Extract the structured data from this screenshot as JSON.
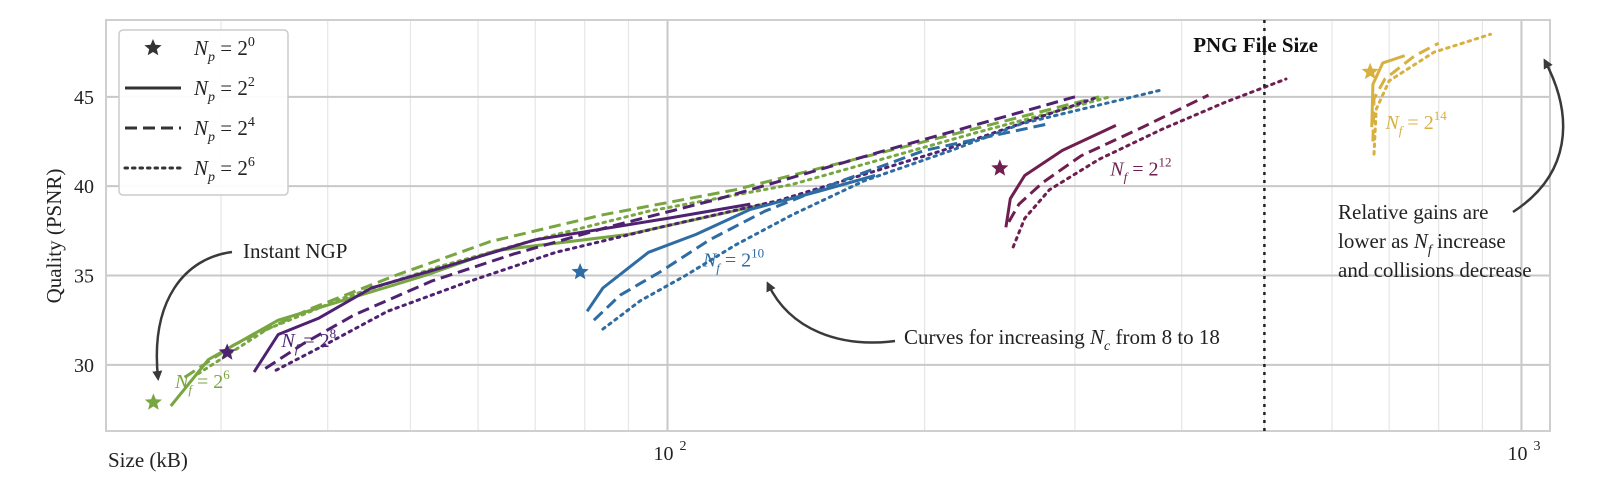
{
  "chart_data": {
    "type": "line",
    "x_scale": "log",
    "xlim": [
      22,
      1080
    ],
    "ylim": [
      26.3,
      49.3
    ],
    "xlabel": "Size (kB)",
    "ylabel": "Quality (PSNR)",
    "x_ticks": [
      {
        "value": 100,
        "base": "10",
        "exp": "2"
      },
      {
        "value": 1000,
        "base": "10",
        "exp": "3"
      }
    ],
    "y_ticks": [
      30,
      35,
      40,
      45
    ],
    "grid": true,
    "legend": {
      "position": "top-left",
      "entries": [
        {
          "style": "star",
          "text": "N",
          "sub": "p",
          "eq": " = 2",
          "exp": "0"
        },
        {
          "style": "solid",
          "text": "N",
          "sub": "p",
          "eq": " = 2",
          "exp": "2"
        },
        {
          "style": "dashed",
          "text": "N",
          "sub": "p",
          "eq": " = 2",
          "exp": "4"
        },
        {
          "style": "dotted",
          "text": "N",
          "sub": "p",
          "eq": " = 2",
          "exp": "6"
        }
      ]
    },
    "png_file_size": {
      "x": 500,
      "label": "PNG File Size"
    },
    "annotations": {
      "instant_ngp": "Instant NGP",
      "curves": {
        "pre": "Curves for increasing ",
        "sym": "N",
        "sub": "c",
        "post": " from 8 to 18"
      },
      "gains": {
        "line1": "Relative gains are",
        "line2_pre": "lower as ",
        "line2_sym": "N",
        "line2_sub": "f",
        "line2_post": " increase",
        "line3": "and collisions decrease"
      }
    },
    "series_groups": [
      {
        "name": "Nf = 2^6",
        "color": "#78a640",
        "label": {
          "sym": "N",
          "sub": "f",
          "eq": " = 2",
          "exp": "6",
          "at": [
            26.5,
            28.7
          ]
        },
        "star": [
          25.0,
          27.9
        ],
        "curves": [
          {
            "dash": "solid",
            "points": [
              [
                26.2,
                27.7
              ],
              [
                29,
                30.3
              ],
              [
                35,
                32.5
              ],
              [
                41,
                33.5
              ],
              [
                52,
                35.0
              ],
              [
                63,
                36.4
              ],
              [
                90,
                37.3
              ],
              [
                130,
                39.0
              ]
            ]
          },
          {
            "dash": "dashed",
            "points": [
              [
                27.2,
                29.3
              ],
              [
                31,
                31.1
              ],
              [
                38,
                33.1
              ],
              [
                48,
                35.0
              ],
              [
                62,
                36.9
              ],
              [
                84,
                38.4
              ],
              [
                120,
                39.8
              ],
              [
                220,
                43.0
              ],
              [
                320,
                45.0
              ]
            ]
          },
          {
            "dash": "dotted",
            "points": [
              [
                28.2,
                29.5
              ],
              [
                34,
                32.0
              ],
              [
                42,
                33.8
              ],
              [
                54,
                35.5
              ],
              [
                70,
                37.0
              ],
              [
                95,
                38.6
              ],
              [
                140,
                40.1
              ],
              [
                230,
                43.0
              ],
              [
                330,
                45.0
              ]
            ]
          }
        ]
      },
      {
        "name": "Nf = 2^8",
        "color": "#4e2270",
        "label": {
          "sym": "N",
          "sub": "f",
          "eq": " = 2",
          "exp": "8",
          "at": [
            35.3,
            31.0
          ]
        },
        "star": [
          30.5,
          30.7
        ],
        "curves": [
          {
            "dash": "solid",
            "points": [
              [
                32.8,
                29.6
              ],
              [
                35.0,
                31.7
              ],
              [
                39,
                32.6
              ],
              [
                45,
                34.3
              ],
              [
                55,
                35.5
              ],
              [
                70,
                37.0
              ],
              [
                100,
                38.2
              ],
              [
                125,
                39.0
              ]
            ]
          },
          {
            "dash": "dashed",
            "points": [
              [
                33.8,
                29.8
              ],
              [
                37.5,
                31.2
              ],
              [
                43,
                32.8
              ],
              [
                53,
                34.7
              ],
              [
                66,
                36.2
              ],
              [
                85,
                37.7
              ],
              [
                115,
                39.3
              ],
              [
                180,
                42.0
              ],
              [
                300,
                45.0
              ]
            ]
          },
          {
            "dash": "dotted",
            "points": [
              [
                34.8,
                29.7
              ],
              [
                40,
                31.2
              ],
              [
                47,
                33.0
              ],
              [
                58,
                34.6
              ],
              [
                74,
                36.3
              ],
              [
                98,
                37.7
              ],
              [
                135,
                39.2
              ],
              [
                210,
                42.0
              ],
              [
                320,
                45.0
              ]
            ]
          }
        ]
      },
      {
        "name": "Nf = 2^10",
        "color": "#2e6ca4",
        "label": {
          "sym": "N",
          "sub": "f",
          "eq": " = 2",
          "exp": "10",
          "at": [
            110,
            35.5
          ]
        },
        "star": [
          79,
          35.2
        ],
        "curves": [
          {
            "dash": "solid",
            "points": [
              [
                80.5,
                33.0
              ],
              [
                84,
                34.3
              ],
              [
                95,
                36.3
              ],
              [
                108,
                37.3
              ],
              [
                125,
                38.7
              ],
              [
                150,
                39.7
              ],
              [
                175,
                40.6
              ]
            ]
          },
          {
            "dash": "dashed",
            "points": [
              [
                82,
                32.5
              ],
              [
                88,
                33.9
              ],
              [
                98,
                35.2
              ],
              [
                112,
                37.0
              ],
              [
                130,
                38.6
              ],
              [
                160,
                40.3
              ],
              [
                200,
                42.0
              ],
              [
                280,
                43.5
              ]
            ]
          },
          {
            "dash": "dotted",
            "points": [
              [
                84,
                32.0
              ],
              [
                93,
                33.6
              ],
              [
                105,
                35.0
              ],
              [
                120,
                36.7
              ],
              [
                140,
                38.4
              ],
              [
                170,
                40.3
              ],
              [
                215,
                42.0
              ],
              [
                260,
                43.5
              ],
              [
                380,
                45.4
              ]
            ]
          }
        ]
      },
      {
        "name": "Nf = 2^12",
        "color": "#6e1f4f",
        "label": {
          "sym": "N",
          "sub": "f",
          "eq": " = 2",
          "exp": "12",
          "at": [
            330,
            40.6
          ]
        },
        "star": [
          245,
          41.0
        ],
        "curves": [
          {
            "dash": "solid",
            "points": [
              [
                249,
                37.7
              ],
              [
                252,
                39.3
              ],
              [
                262,
                40.6
              ],
              [
                290,
                42.0
              ],
              [
                335,
                43.4
              ]
            ]
          },
          {
            "dash": "dashed",
            "points": [
              [
                251,
                38.0
              ],
              [
                258,
                39.0
              ],
              [
                275,
                40.2
              ],
              [
                305,
                41.7
              ],
              [
                360,
                43.3
              ],
              [
                430,
                45.1
              ]
            ]
          },
          {
            "dash": "dotted",
            "points": [
              [
                254,
                36.6
              ],
              [
                262,
                38.2
              ],
              [
                280,
                39.8
              ],
              [
                320,
                41.5
              ],
              [
                380,
                43.2
              ],
              [
                450,
                44.7
              ],
              [
                530,
                46.0
              ]
            ]
          }
        ]
      },
      {
        "name": "Nf = 2^14",
        "color": "#d8b040",
        "label": {
          "sym": "N",
          "sub": "f",
          "eq": " = 2",
          "exp": "14",
          "at": [
            693,
            43.2
          ]
        },
        "star": [
          665,
          46.4
        ],
        "curves": [
          {
            "dash": "solid",
            "points": [
              [
                668,
                43.3
              ],
              [
                670,
                45.7
              ],
              [
                688,
                46.9
              ],
              [
                730,
                47.3
              ]
            ]
          },
          {
            "dash": "dashed",
            "points": [
              [
                670,
                42.5
              ],
              [
                672,
                44.9
              ],
              [
                692,
                46.0
              ],
              [
                750,
                47.3
              ],
              [
                800,
                48.0
              ]
            ]
          },
          {
            "dash": "dotted",
            "points": [
              [
                672,
                41.8
              ],
              [
                676,
                44.3
              ],
              [
                700,
                45.9
              ],
              [
                790,
                47.5
              ],
              [
                920,
                48.5
              ]
            ]
          }
        ]
      }
    ]
  }
}
